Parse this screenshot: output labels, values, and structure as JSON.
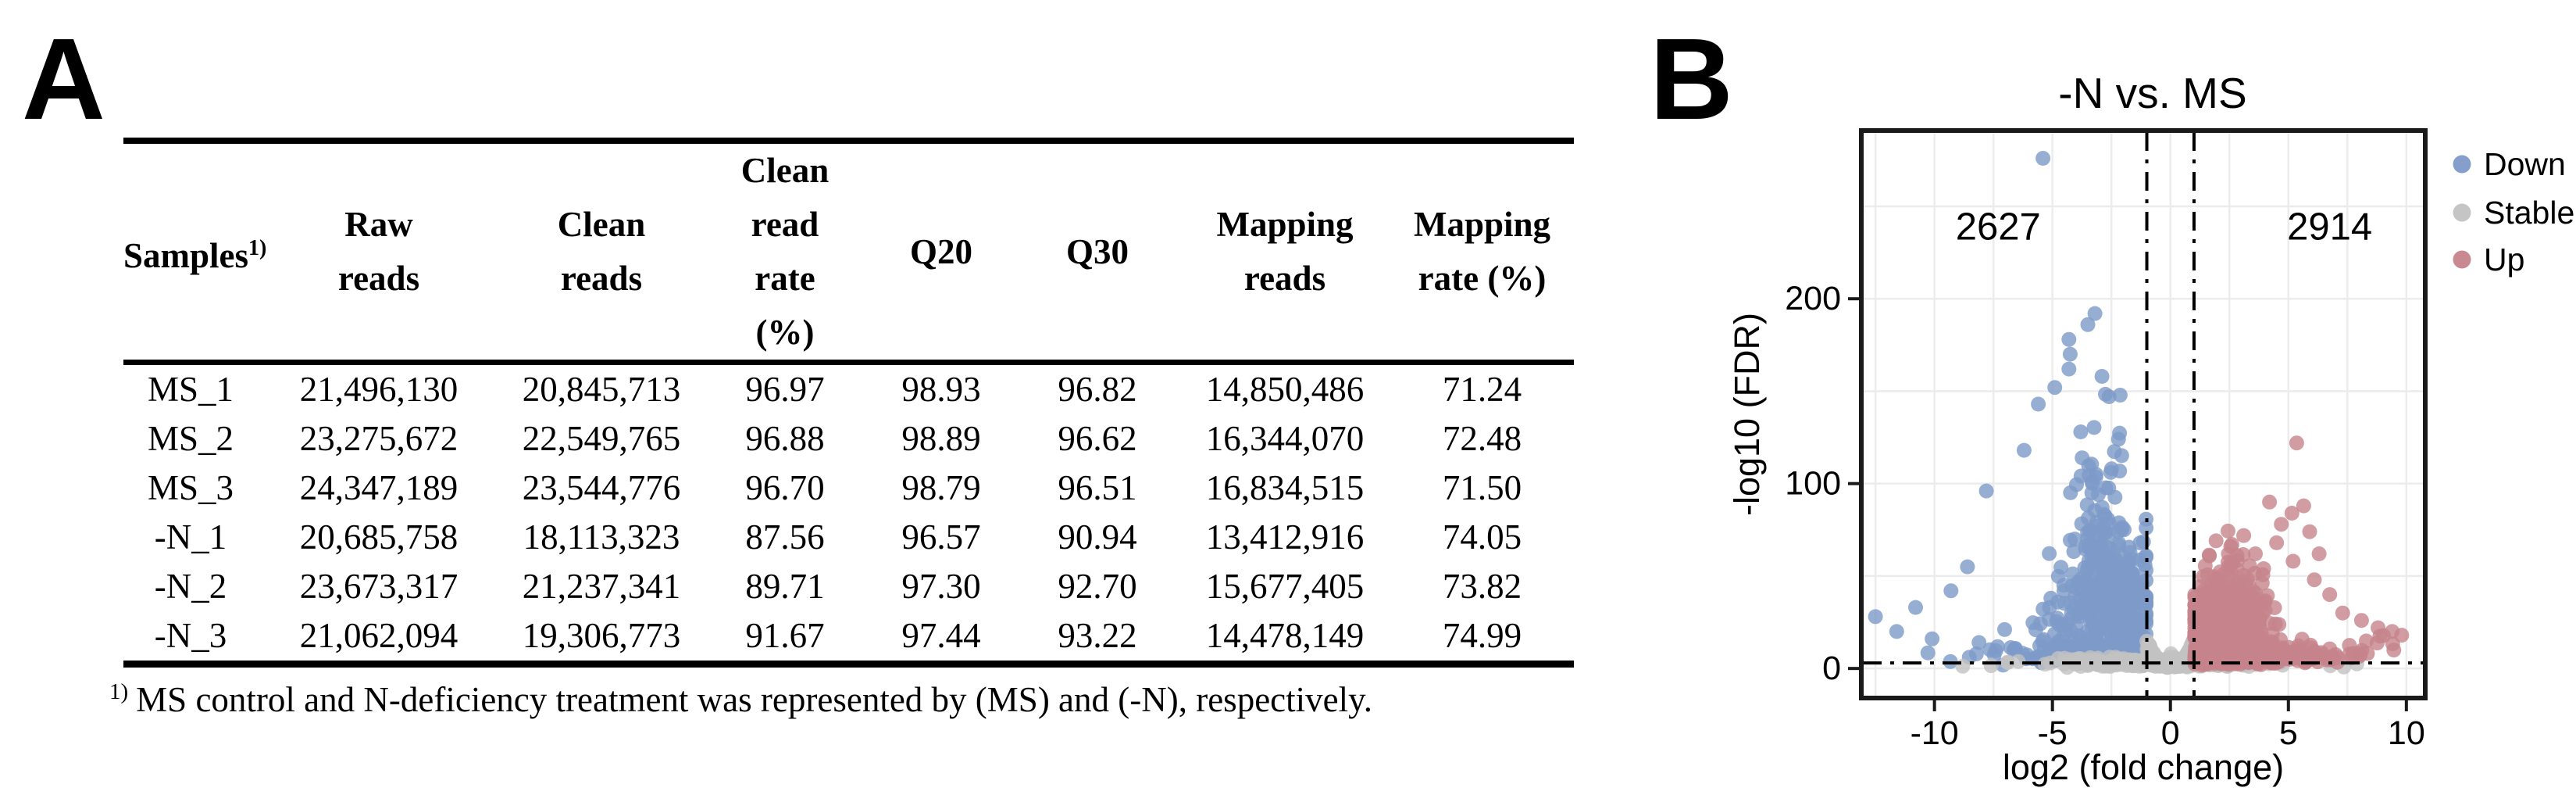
{
  "panel_a": {
    "label": "A",
    "table": {
      "samples_header": "Samples",
      "samples_sup": "1)",
      "headers": [
        "Raw\nreads",
        "Clean\nreads",
        "Clean\nread\nrate\n(%)",
        "Q20",
        "Q30",
        "Mapping\nreads",
        "Mapping\nrate (%)"
      ],
      "rows": [
        [
          "MS_1",
          "21,496,130",
          "20,845,713",
          "96.97",
          "98.93",
          "96.82",
          "14,850,486",
          "71.24"
        ],
        [
          "MS_2",
          "23,275,672",
          "22,549,765",
          "96.88",
          "98.89",
          "96.62",
          "16,344,070",
          "72.48"
        ],
        [
          "MS_3",
          "24,347,189",
          "23,544,776",
          "96.70",
          "98.79",
          "96.51",
          "16,834,515",
          "71.50"
        ],
        [
          "-N_1",
          "20,685,758",
          "18,113,323",
          "87.56",
          "96.57",
          "90.94",
          "13,412,916",
          "74.05"
        ],
        [
          "-N_2",
          "23,673,317",
          "21,237,341",
          "89.71",
          "97.30",
          "92.70",
          "15,677,405",
          "73.82"
        ],
        [
          "-N_3",
          "21,062,094",
          "19,306,773",
          "91.67",
          "97.44",
          "93.22",
          "14,478,149",
          "74.99"
        ]
      ]
    },
    "footnote": {
      "sup": "1)",
      "text": "MS control and N-deficiency treatment was represented by (MS) and (-N), respectively."
    }
  },
  "panel_b": {
    "label": "B",
    "chart_data": {
      "type": "scatter",
      "title": "-N vs. MS",
      "xlabel": "log2 (fold change)",
      "ylabel": "-log10 (FDR)",
      "xlim": [
        -13.1,
        10.8
      ],
      "ylim": [
        -16,
        291
      ],
      "x_ticks": [
        -10,
        -5,
        0,
        5,
        10
      ],
      "y_ticks": [
        0,
        100,
        200
      ],
      "grid": {
        "x_interval": 2.5,
        "y_interval": 50,
        "color": "#ececec"
      },
      "thresholds": {
        "log2fc": [
          -1,
          1
        ],
        "fdr_line_y": 3
      },
      "counts": {
        "down": 2627,
        "up": 2914
      },
      "count_labels": [
        {
          "text": "2627",
          "x": -7.3,
          "y": 232
        },
        {
          "text": "2914",
          "x": 6.75,
          "y": 232
        }
      ],
      "legend": [
        {
          "label": "Down",
          "color": "#7d9ac8"
        },
        {
          "label": "Stable",
          "color": "#c2c2c2"
        },
        {
          "label": "Up",
          "color": "#c6838b"
        }
      ],
      "point_radius_px": 9.5,
      "point_opacity": 0.8,
      "outliers": {
        "down": [
          [
            -5.4,
            276
          ],
          [
            -3.2,
            192
          ],
          [
            -3.5,
            186
          ],
          [
            -4.3,
            178
          ],
          [
            -4.25,
            170
          ],
          [
            -4.3,
            162
          ],
          [
            -2.9,
            158
          ],
          [
            -4.9,
            152
          ],
          [
            -2.6,
            147
          ],
          [
            -5.6,
            143
          ],
          [
            -3.8,
            128
          ],
          [
            -2.2,
            124
          ],
          [
            -6.2,
            118
          ],
          [
            -7.8,
            96
          ],
          [
            -8.6,
            55
          ],
          [
            -9.3,
            42
          ],
          [
            -10.1,
            16
          ],
          [
            -10.8,
            33
          ],
          [
            -11.6,
            20
          ],
          [
            -12.5,
            28
          ]
        ],
        "up": [
          [
            5.35,
            122
          ],
          [
            5.65,
            88
          ],
          [
            5.15,
            84
          ],
          [
            4.7,
            78
          ],
          [
            5.9,
            74
          ],
          [
            4.5,
            68
          ],
          [
            6.3,
            62
          ],
          [
            5.2,
            58
          ],
          [
            6.1,
            48
          ],
          [
            3.95,
            54
          ],
          [
            4.2,
            90
          ],
          [
            3.6,
            62
          ],
          [
            6.75,
            40
          ],
          [
            7.3,
            30
          ],
          [
            8.1,
            26
          ],
          [
            8.8,
            22
          ],
          [
            9.4,
            20
          ],
          [
            9.8,
            18
          ]
        ],
        "stable": [
          [
            7.35,
            0.8
          ],
          [
            -7.6,
            1.5
          ],
          [
            7.9,
            2.5
          ],
          [
            -8.8,
            1.2
          ]
        ]
      },
      "generation": {
        "seed": 11,
        "down": {
          "band_n": 430,
          "band_rate": 1.55,
          "mound_n": 340,
          "mound_mu": -2.7,
          "mound_sd": 1.05,
          "mound_peak": 58,
          "mound_width": 6
        },
        "up": {
          "band_n": 480,
          "band_rate": 1.8,
          "mound_n": 330,
          "mound_mu": 2.5,
          "mound_sd": 0.9,
          "mound_peak": 30,
          "mound_width": 4.5,
          "tail_lift": 2.0
        },
        "stable": {
          "band_n": 270,
          "band_sd": 2.3,
          "notch_n": 170,
          "notch_peak": 16
        }
      }
    }
  }
}
